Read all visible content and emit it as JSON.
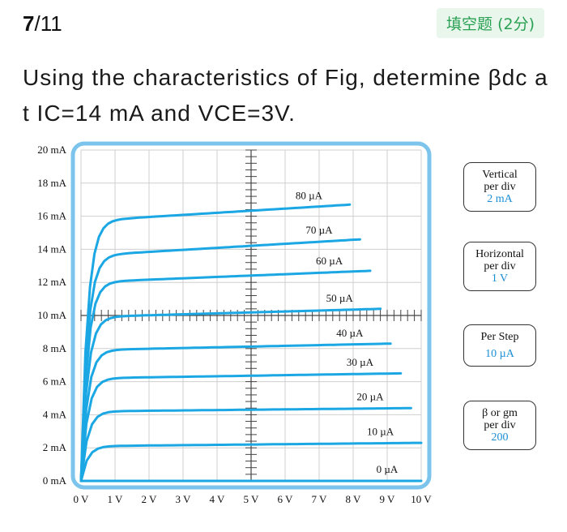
{
  "header": {
    "progress_current": "7",
    "progress_total": "/11",
    "question_type": "填空题 (2分)"
  },
  "question": {
    "text": "Using the characteristics of Fig, determine βdc at IC=14 mA and VCE=3V."
  },
  "figure": {
    "colors": {
      "curve": "#1aa7e3",
      "frame": "#7cc4ec",
      "grid": "#cfcfcf",
      "screen": "#ffffff"
    },
    "side_boxes": [
      {
        "label": "Vertical\nper div",
        "value": "2 mA"
      },
      {
        "label": "Horizontal\nper div",
        "value": "1 V"
      },
      {
        "label": "Per Step",
        "value": "10 µA"
      },
      {
        "label": "β or gm\nper div",
        "value": "200"
      }
    ]
  },
  "chart_data": {
    "type": "line",
    "title": "",
    "xlabel": "",
    "ylabel": "",
    "x_ticks": [
      "0 V",
      "1 V",
      "2 V",
      "3 V",
      "4 V",
      "5 V",
      "6 V",
      "7 V",
      "8 V",
      "9 V",
      "10 V"
    ],
    "y_ticks": [
      "0 mA",
      "2 mA",
      "4 mA",
      "6 mA",
      "8 mA",
      "10 mA",
      "12 mA",
      "14 mA",
      "16 mA",
      "18 mA",
      "20 mA"
    ],
    "xlim": [
      0,
      10
    ],
    "ylim": [
      0,
      20
    ],
    "grid": true,
    "series": [
      {
        "name": "0 µA",
        "x_end": 10,
        "y_start": 0,
        "y_end": 0,
        "label_at": 9.0
      },
      {
        "name": "10 µA",
        "x_end": 10,
        "y_start": 2.1,
        "y_end": 2.3,
        "label_at": 8.8
      },
      {
        "name": "20 µA",
        "x_end": 9.7,
        "y_start": 4.2,
        "y_end": 4.4,
        "label_at": 8.5
      },
      {
        "name": "30 µA",
        "x_end": 9.4,
        "y_start": 6.2,
        "y_end": 6.5,
        "label_at": 8.2
      },
      {
        "name": "40 µA",
        "x_end": 9.1,
        "y_start": 7.9,
        "y_end": 8.3,
        "label_at": 7.9
      },
      {
        "name": "50 µA",
        "x_end": 8.8,
        "y_start": 9.9,
        "y_end": 10.4,
        "label_at": 7.6
      },
      {
        "name": "60 µA",
        "x_end": 8.5,
        "y_start": 12.0,
        "y_end": 12.7,
        "label_at": 7.3
      },
      {
        "name": "70 µA",
        "x_end": 8.2,
        "y_start": 13.6,
        "y_end": 14.6,
        "label_at": 7.0
      },
      {
        "name": "80 µA",
        "x_end": 7.9,
        "y_start": 15.7,
        "y_end": 16.7,
        "label_at": 6.7
      }
    ]
  }
}
